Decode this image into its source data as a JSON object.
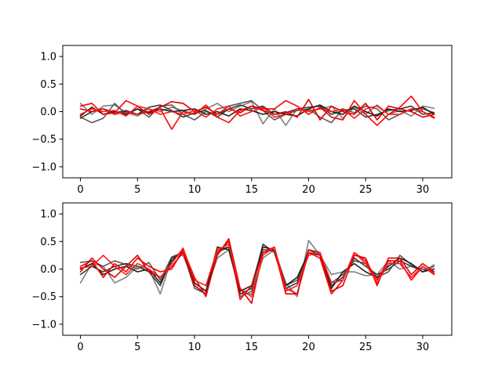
{
  "chart_data": [
    {
      "type": "line",
      "title": "",
      "xlabel": "",
      "ylabel": "",
      "xlim": [
        -1.55,
        32.55
      ],
      "ylim": [
        -1.2,
        1.2
      ],
      "xticks": [
        0,
        5,
        10,
        15,
        20,
        25,
        30
      ],
      "yticks": [
        1.0,
        0.5,
        0.0,
        -0.5,
        -1.0
      ],
      "xtick_labels": [
        "0",
        "5",
        "10",
        "15",
        "20",
        "25",
        "30"
      ],
      "ytick_labels": [
        "1.0",
        "0.5",
        "0.0",
        "−0.5",
        "−1.0"
      ],
      "grid": false,
      "legend": "none",
      "series": [
        {
          "color": "#7f7f7f",
          "values": [
            0.15,
            -0.05,
            0.1,
            0.12,
            -0.02,
            -0.08,
            0.05,
            0.0,
            0.08,
            0.02,
            -0.05,
            0.05,
            0.15,
            0.0,
            0.1,
            0.18,
            -0.22,
            0.05,
            -0.25,
            0.05,
            0.02,
            0.05,
            0.1,
            -0.12,
            0.08,
            -0.05,
            0.12,
            -0.05,
            0.02,
            -0.08,
            0.1,
            0.06
          ]
        },
        {
          "color": "#595959",
          "values": [
            -0.1,
            -0.2,
            -0.12,
            0.15,
            -0.05,
            0.05,
            -0.1,
            0.1,
            0.12,
            -0.05,
            -0.15,
            0.0,
            -0.05,
            0.1,
            0.15,
            0.2,
            0.02,
            -0.15,
            -0.05,
            0.02,
            0.05,
            -0.1,
            -0.2,
            0.05,
            -0.02,
            0.1,
            0.05,
            -0.15,
            -0.05,
            0.05,
            0.05,
            -0.02
          ]
        },
        {
          "color": "#3a3a3a",
          "values": [
            -0.12,
            0.0,
            0.05,
            -0.02,
            0.02,
            -0.05,
            0.08,
            0.12,
            0.02,
            -0.1,
            -0.02,
            0.02,
            -0.1,
            0.05,
            0.12,
            0.05,
            0.1,
            -0.05,
            -0.02,
            0.05,
            0.08,
            0.1,
            -0.05,
            0.02,
            0.05,
            -0.1,
            -0.05,
            0.02,
            0.05,
            0.1,
            -0.05,
            -0.02
          ]
        },
        {
          "color": "#1f1f1f",
          "values": [
            -0.08,
            0.08,
            -0.05,
            0.0,
            -0.05,
            0.05,
            -0.02,
            0.05,
            0.0,
            0.02,
            0.05,
            -0.05,
            0.0,
            -0.08,
            0.05,
            0.02,
            -0.05,
            0.0,
            -0.05,
            -0.08,
            0.05,
            0.12,
            0.0,
            -0.05,
            0.1,
            0.0,
            -0.08,
            0.05,
            0.0,
            0.02,
            0.08,
            -0.05
          ]
        },
        {
          "color": "#ff0000",
          "values": [
            0.1,
            0.15,
            -0.05,
            -0.02,
            0.2,
            0.1,
            -0.05,
            0.05,
            -0.32,
            0.0,
            -0.05,
            0.12,
            -0.1,
            -0.2,
            0.02,
            0.1,
            0.05,
            0.05,
            0.2,
            0.1,
            -0.05,
            0.08,
            -0.1,
            -0.15,
            0.2,
            -0.05,
            -0.25,
            -0.05,
            0.08,
            0.28,
            0.0,
            -0.1
          ]
        },
        {
          "color": "#e00000",
          "values": [
            0.05,
            0.0,
            0.05,
            -0.05,
            0.0,
            -0.05,
            0.0,
            0.08,
            0.18,
            0.15,
            0.0,
            0.08,
            -0.05,
            0.05,
            -0.02,
            0.1,
            0.02,
            -0.05,
            0.0,
            -0.1,
            0.22,
            -0.15,
            0.1,
            0.0,
            -0.05,
            0.15,
            -0.15,
            0.1,
            0.05,
            0.0,
            -0.1,
            -0.05
          ]
        },
        {
          "color": "#ff1a1a",
          "values": [
            -0.05,
            0.05,
            0.0,
            0.02,
            -0.08,
            0.1,
            0.05,
            -0.05,
            0.0,
            -0.05,
            0.02,
            -0.1,
            0.05,
            0.1,
            -0.08,
            0.0,
            0.08,
            -0.1,
            -0.05,
            0.05,
            0.0,
            0.05,
            0.0,
            0.05,
            -0.12,
            0.05,
            0.1,
            -0.05,
            -0.05,
            0.05,
            0.0,
            -0.12
          ]
        }
      ]
    },
    {
      "type": "line",
      "title": "",
      "xlabel": "",
      "ylabel": "",
      "xlim": [
        -1.55,
        32.55
      ],
      "ylim": [
        -1.2,
        1.2
      ],
      "xticks": [
        0,
        5,
        10,
        15,
        20,
        25,
        30
      ],
      "yticks": [
        1.0,
        0.5,
        0.0,
        -0.5,
        -1.0
      ],
      "xtick_labels": [
        "0",
        "5",
        "10",
        "15",
        "20",
        "25",
        "30"
      ],
      "ytick_labels": [
        "1.0",
        "0.5",
        "0.0",
        "−0.5",
        "−1.0"
      ],
      "grid": false,
      "legend": "none",
      "series": [
        {
          "color": "#7f7f7f",
          "values": [
            -0.25,
            0.1,
            0.05,
            -0.25,
            -0.15,
            0.05,
            0.0,
            -0.45,
            0.2,
            0.25,
            -0.25,
            -0.4,
            0.2,
            0.35,
            -0.45,
            -0.45,
            0.2,
            0.35,
            -0.25,
            -0.5,
            0.52,
            0.25,
            -0.1,
            -0.05,
            -0.05,
            -0.12,
            -0.1,
            0.15,
            0.0,
            0.05,
            -0.05,
            0.08
          ]
        },
        {
          "color": "#595959",
          "values": [
            0.12,
            0.15,
            0.05,
            0.15,
            0.08,
            0.0,
            0.12,
            -0.2,
            0.22,
            0.3,
            -0.35,
            -0.45,
            0.3,
            0.4,
            -0.5,
            -0.4,
            0.35,
            0.35,
            -0.3,
            -0.2,
            0.3,
            0.2,
            -0.25,
            -0.1,
            0.15,
            0.1,
            -0.15,
            -0.05,
            0.25,
            0.08,
            -0.05,
            0.05
          ]
        },
        {
          "color": "#3a3a3a",
          "values": [
            -0.1,
            0.05,
            -0.05,
            0.05,
            0.1,
            0.05,
            -0.05,
            -0.3,
            0.2,
            0.3,
            -0.3,
            -0.45,
            0.35,
            0.4,
            -0.45,
            -0.35,
            0.45,
            0.3,
            -0.35,
            -0.25,
            0.35,
            0.3,
            -0.3,
            -0.15,
            0.2,
            0.05,
            -0.1,
            0.0,
            0.15,
            0.05,
            0.0,
            -0.05
          ]
        },
        {
          "color": "#1f1f1f",
          "values": [
            0.0,
            0.1,
            -0.1,
            0.0,
            0.05,
            -0.05,
            0.0,
            -0.25,
            0.15,
            0.35,
            -0.25,
            -0.4,
            0.4,
            0.35,
            -0.4,
            -0.3,
            0.4,
            0.35,
            -0.3,
            -0.15,
            0.3,
            0.25,
            -0.35,
            -0.05,
            0.1,
            -0.05,
            -0.15,
            0.05,
            0.2,
            0.1,
            -0.05,
            0.0
          ]
        },
        {
          "color": "#ff0000",
          "values": [
            0.05,
            0.15,
            -0.15,
            0.1,
            -0.05,
            0.2,
            0.05,
            -0.05,
            0.0,
            0.35,
            -0.15,
            -0.5,
            0.3,
            0.5,
            -0.55,
            -0.3,
            0.3,
            0.4,
            -0.35,
            -0.45,
            0.3,
            0.2,
            -0.45,
            -0.2,
            0.3,
            0.15,
            -0.2,
            0.15,
            0.15,
            -0.2,
            0.05,
            -0.1
          ]
        },
        {
          "color": "#e00000",
          "values": [
            -0.05,
            0.2,
            0.0,
            -0.15,
            0.05,
            0.25,
            -0.05,
            -0.15,
            0.05,
            0.3,
            -0.3,
            -0.45,
            0.25,
            0.55,
            -0.35,
            -0.62,
            0.3,
            0.35,
            -0.45,
            -0.45,
            0.35,
            0.25,
            -0.4,
            -0.3,
            0.25,
            0.2,
            -0.3,
            0.2,
            0.2,
            -0.1,
            0.1,
            -0.05
          ]
        },
        {
          "color": "#ff1a1a",
          "values": [
            0.02,
            0.05,
            0.25,
            0.05,
            -0.1,
            0.1,
            0.0,
            -0.15,
            0.1,
            0.38,
            -0.2,
            -0.3,
            0.35,
            0.45,
            -0.35,
            -0.5,
            0.25,
            0.4,
            -0.4,
            -0.3,
            0.25,
            0.3,
            -0.25,
            -0.2,
            0.3,
            0.1,
            -0.25,
            0.1,
            0.1,
            -0.15,
            0.05,
            -0.08
          ]
        }
      ]
    }
  ]
}
